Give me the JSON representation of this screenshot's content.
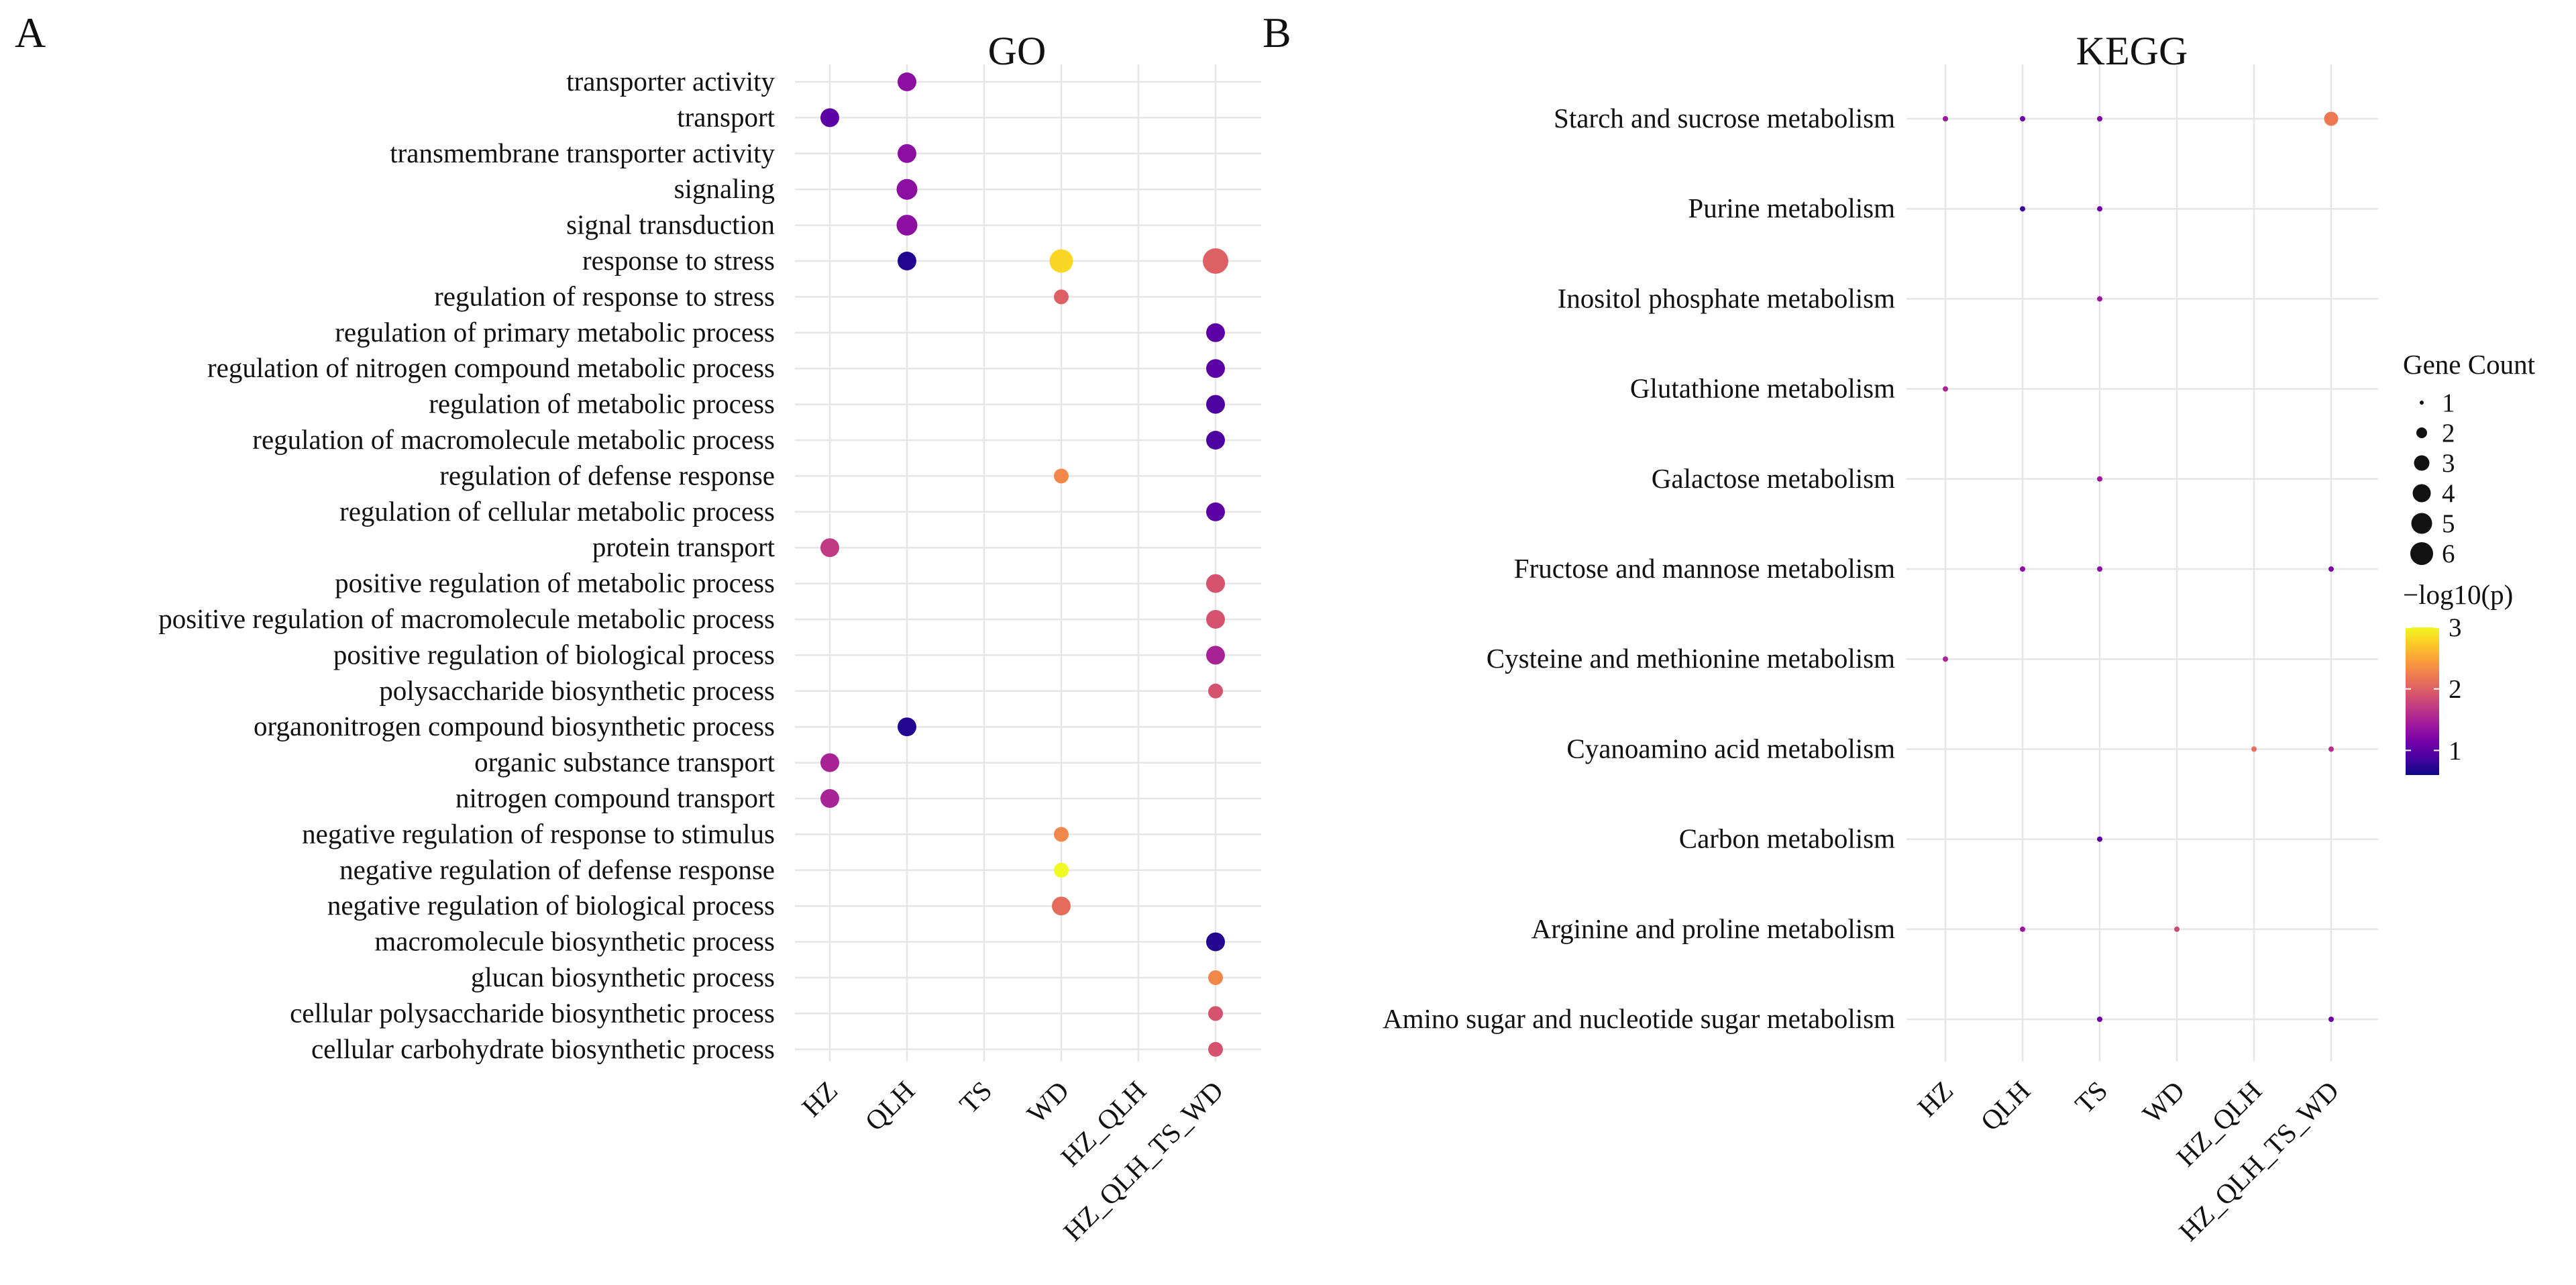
{
  "figure": {
    "panel_a_label": "A",
    "panel_b_label": "B"
  },
  "chart_data": [
    {
      "type": "scatter",
      "subtype": "dot-matrix",
      "title": "GO",
      "xlabel": "",
      "ylabel": "",
      "grid": true,
      "x_categories": [
        "HZ",
        "QLH",
        "TS",
        "WD",
        "HZ_QLH",
        "HZ_QLH_TS_WD"
      ],
      "y_categories": [
        "transporter activity",
        "transport",
        "transmembrane transporter activity",
        "signaling",
        "signal transduction",
        "response to stress",
        "regulation of response to stress",
        "regulation of primary metabolic process",
        "regulation of nitrogen compound metabolic process",
        "regulation of metabolic process",
        "regulation of macromolecule metabolic process",
        "regulation of defense response",
        "regulation of cellular metabolic process",
        "protein transport",
        "positive regulation of metabolic process",
        "positive regulation of macromolecule metabolic process",
        "positive regulation of biological process",
        "polysaccharide biosynthetic process",
        "organonitrogen compound biosynthetic process",
        "organic substance transport",
        "nitrogen compound transport",
        "negative regulation of response to stimulus",
        "negative regulation of defense response",
        "negative regulation of biological process",
        "macromolecule biosynthetic process",
        "glucan biosynthetic process",
        "cellular polysaccharide biosynthetic process",
        "cellular carbohydrate biosynthetic process"
      ],
      "points": [
        {
          "x": "QLH",
          "y": "transporter activity",
          "count": 3,
          "neglog10p": 1.3
        },
        {
          "x": "HZ",
          "y": "transport",
          "count": 3,
          "neglog10p": 1.0
        },
        {
          "x": "QLH",
          "y": "transmembrane transporter activity",
          "count": 3,
          "neglog10p": 1.3
        },
        {
          "x": "QLH",
          "y": "signaling",
          "count": 4,
          "neglog10p": 1.3
        },
        {
          "x": "QLH",
          "y": "signal transduction",
          "count": 4,
          "neglog10p": 1.3
        },
        {
          "x": "QLH",
          "y": "response to stress",
          "count": 3,
          "neglog10p": 0.7
        },
        {
          "x": "WD",
          "y": "response to stress",
          "count": 5,
          "neglog10p": 2.8
        },
        {
          "x": "HZ_QLH_TS_WD",
          "y": "response to stress",
          "count": 6,
          "neglog10p": 2.0
        },
        {
          "x": "WD",
          "y": "regulation of response to stress",
          "count": 2,
          "neglog10p": 2.0
        },
        {
          "x": "HZ_QLH_TS_WD",
          "y": "regulation of primary metabolic process",
          "count": 3,
          "neglog10p": 1.0
        },
        {
          "x": "HZ_QLH_TS_WD",
          "y": "regulation of nitrogen compound metabolic process",
          "count": 3,
          "neglog10p": 1.0
        },
        {
          "x": "HZ_QLH_TS_WD",
          "y": "regulation of metabolic process",
          "count": 3,
          "neglog10p": 0.9
        },
        {
          "x": "HZ_QLH_TS_WD",
          "y": "regulation of macromolecule metabolic process",
          "count": 3,
          "neglog10p": 0.9
        },
        {
          "x": "WD",
          "y": "regulation of defense response",
          "count": 2,
          "neglog10p": 2.3
        },
        {
          "x": "HZ_QLH_TS_WD",
          "y": "regulation of cellular metabolic process",
          "count": 3,
          "neglog10p": 1.0
        },
        {
          "x": "HZ",
          "y": "protein transport",
          "count": 3,
          "neglog10p": 1.7
        },
        {
          "x": "HZ_QLH_TS_WD",
          "y": "positive regulation of metabolic process",
          "count": 3,
          "neglog10p": 1.9
        },
        {
          "x": "HZ_QLH_TS_WD",
          "y": "positive regulation of macromolecule metabolic process",
          "count": 3,
          "neglog10p": 1.9
        },
        {
          "x": "HZ_QLH_TS_WD",
          "y": "positive regulation of biological process",
          "count": 3,
          "neglog10p": 1.5
        },
        {
          "x": "HZ_QLH_TS_WD",
          "y": "polysaccharide biosynthetic process",
          "count": 2,
          "neglog10p": 1.9
        },
        {
          "x": "QLH",
          "y": "organonitrogen compound biosynthetic process",
          "count": 3,
          "neglog10p": 0.7
        },
        {
          "x": "HZ",
          "y": "organic substance transport",
          "count": 3,
          "neglog10p": 1.5
        },
        {
          "x": "HZ",
          "y": "nitrogen compound transport",
          "count": 3,
          "neglog10p": 1.5
        },
        {
          "x": "WD",
          "y": "negative regulation of response to stimulus",
          "count": 2,
          "neglog10p": 2.3
        },
        {
          "x": "WD",
          "y": "negative regulation of defense response",
          "count": 2,
          "neglog10p": 3.0
        },
        {
          "x": "WD",
          "y": "negative regulation of biological process",
          "count": 3,
          "neglog10p": 2.1
        },
        {
          "x": "HZ_QLH_TS_WD",
          "y": "macromolecule biosynthetic process",
          "count": 3,
          "neglog10p": 0.7
        },
        {
          "x": "HZ_QLH_TS_WD",
          "y": "glucan biosynthetic process",
          "count": 2,
          "neglog10p": 2.3
        },
        {
          "x": "HZ_QLH_TS_WD",
          "y": "cellular polysaccharide biosynthetic process",
          "count": 2,
          "neglog10p": 1.9
        },
        {
          "x": "HZ_QLH_TS_WD",
          "y": "cellular carbohydrate biosynthetic process",
          "count": 2,
          "neglog10p": 1.9
        }
      ]
    },
    {
      "type": "scatter",
      "subtype": "dot-matrix",
      "title": "KEGG",
      "xlabel": "",
      "ylabel": "",
      "grid": true,
      "x_categories": [
        "HZ",
        "QLH",
        "TS",
        "WD",
        "HZ_QLH",
        "HZ_QLH_TS_WD"
      ],
      "y_categories": [
        "Starch and sucrose metabolism",
        "Purine metabolism",
        "Inositol phosphate metabolism",
        "Glutathione metabolism",
        "Galactose metabolism",
        "Fructose and mannose metabolism",
        "Cysteine and methionine metabolism",
        "Cyanoamino acid metabolism",
        "Carbon metabolism",
        "Arginine and proline metabolism",
        "Amino sugar and nucleotide sugar metabolism"
      ],
      "points": [
        {
          "x": "HZ",
          "y": "Starch and sucrose metabolism",
          "count": 1,
          "neglog10p": 1.4
        },
        {
          "x": "QLH",
          "y": "Starch and sucrose metabolism",
          "count": 1,
          "neglog10p": 1.1
        },
        {
          "x": "TS",
          "y": "Starch and sucrose metabolism",
          "count": 1,
          "neglog10p": 1.2
        },
        {
          "x": "HZ_QLH_TS_WD",
          "y": "Starch and sucrose metabolism",
          "count": 3,
          "neglog10p": 2.2
        },
        {
          "x": "QLH",
          "y": "Purine metabolism",
          "count": 1,
          "neglog10p": 0.8
        },
        {
          "x": "TS",
          "y": "Purine metabolism",
          "count": 1,
          "neglog10p": 1.1
        },
        {
          "x": "TS",
          "y": "Inositol phosphate metabolism",
          "count": 1,
          "neglog10p": 1.4
        },
        {
          "x": "HZ",
          "y": "Glutathione metabolism",
          "count": 1,
          "neglog10p": 1.5
        },
        {
          "x": "TS",
          "y": "Galactose metabolism",
          "count": 1,
          "neglog10p": 1.4
        },
        {
          "x": "QLH",
          "y": "Fructose and mannose metabolism",
          "count": 1,
          "neglog10p": 1.3
        },
        {
          "x": "TS",
          "y": "Fructose and mannose metabolism",
          "count": 1,
          "neglog10p": 1.3
        },
        {
          "x": "HZ_QLH_TS_WD",
          "y": "Fructose and mannose metabolism",
          "count": 1,
          "neglog10p": 1.2
        },
        {
          "x": "HZ",
          "y": "Cysteine and methionine metabolism",
          "count": 1,
          "neglog10p": 1.5
        },
        {
          "x": "HZ_QLH",
          "y": "Cyanoamino acid metabolism",
          "count": 1,
          "neglog10p": 2.1
        },
        {
          "x": "HZ_QLH_TS_WD",
          "y": "Cyanoamino acid metabolism",
          "count": 1,
          "neglog10p": 1.6
        },
        {
          "x": "TS",
          "y": "Carbon metabolism",
          "count": 1,
          "neglog10p": 1.0
        },
        {
          "x": "QLH",
          "y": "Arginine and proline metabolism",
          "count": 1,
          "neglog10p": 1.4
        },
        {
          "x": "WD",
          "y": "Arginine and proline metabolism",
          "count": 1,
          "neglog10p": 1.8
        },
        {
          "x": "TS",
          "y": "Amino sugar and nucleotide sugar metabolism",
          "count": 1,
          "neglog10p": 1.1
        },
        {
          "x": "HZ_QLH_TS_WD",
          "y": "Amino sugar and nucleotide sugar metabolism",
          "count": 1,
          "neglog10p": 1.1
        }
      ]
    }
  ],
  "legend": {
    "size_title": "Gene Count",
    "size_labels": [
      "1",
      "2",
      "3",
      "4",
      "5",
      "6"
    ],
    "size_values": [
      1,
      2,
      3,
      4,
      5,
      6
    ],
    "color_title": "−log10(p)",
    "color_tick_labels": [
      "3",
      "2",
      "1"
    ],
    "color_tick_values": [
      3,
      2,
      1
    ],
    "color_range": [
      0.6,
      3.0
    ],
    "colormap": "plasma",
    "colormap_stops": [
      "#0d0887",
      "#46039f",
      "#7201a8",
      "#9c179e",
      "#bd3786",
      "#d8576b",
      "#ed7953",
      "#fb9f3a",
      "#fdca26",
      "#f0f921"
    ],
    "grid_color": "#e6e6e6"
  }
}
